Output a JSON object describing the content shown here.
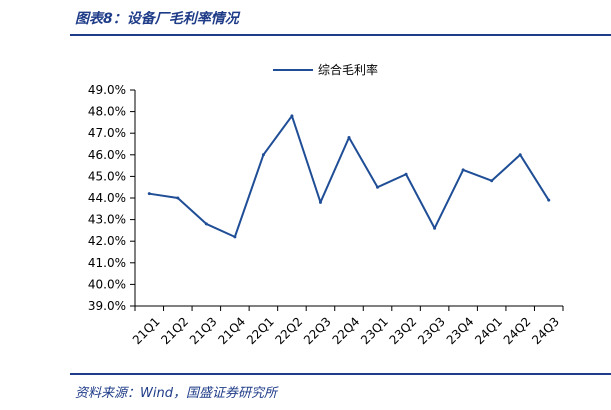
{
  "header": {
    "title": "图表8：设备厂毛利率情况"
  },
  "footer": {
    "source": "资料来源：Wind，国盛证券研究所"
  },
  "colors": {
    "series": "#1f4e96",
    "axis": "#000000",
    "title": "#1f3c88"
  },
  "chart_data": {
    "type": "line",
    "title": "",
    "xlabel": "",
    "ylabel": "",
    "ylim": [
      39.0,
      49.0
    ],
    "yticks": [
      "39.0%",
      "40.0%",
      "41.0%",
      "42.0%",
      "43.0%",
      "44.0%",
      "45.0%",
      "46.0%",
      "47.0%",
      "48.0%",
      "49.0%"
    ],
    "grid": false,
    "legend_position": "top",
    "categories": [
      "21Q1",
      "21Q2",
      "21Q3",
      "21Q4",
      "22Q1",
      "22Q2",
      "22Q3",
      "22Q4",
      "23Q1",
      "23Q2",
      "23Q3",
      "23Q4",
      "24Q1",
      "24Q2",
      "24Q3"
    ],
    "series": [
      {
        "name": "综合毛利率",
        "values": [
          44.2,
          44.0,
          42.8,
          42.2,
          46.0,
          47.8,
          43.8,
          46.8,
          44.5,
          45.1,
          42.6,
          45.3,
          44.8,
          46.0,
          43.9
        ]
      }
    ]
  }
}
